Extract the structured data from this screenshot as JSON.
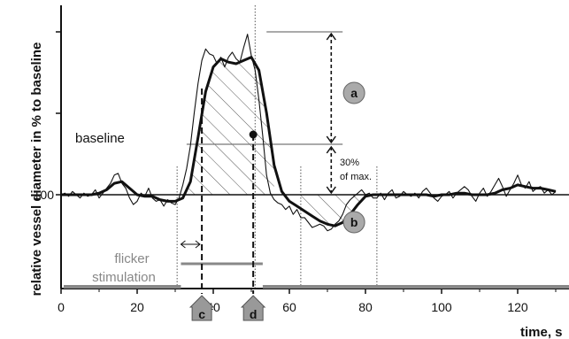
{
  "chart_data": {
    "type": "line",
    "title": "",
    "xlabel": "time, s",
    "ylabel": "relative vessel diameter in % to baseline",
    "xlim": [
      0,
      130
    ],
    "x_ticks": [
      "0",
      "20",
      "40",
      "60",
      "80",
      "100",
      "120"
    ],
    "y_tick_labels": [
      "100"
    ],
    "baseline_value": 100,
    "series": [
      {
        "kind": "raw",
        "x": [
          0,
          1,
          2,
          3,
          4,
          5,
          6,
          7,
          8,
          9,
          10,
          11,
          12,
          13,
          14,
          15,
          16,
          17,
          18,
          19,
          20,
          21,
          22,
          23,
          24,
          25,
          26,
          27,
          28,
          29,
          30,
          31,
          32,
          33,
          34,
          35,
          36,
          37,
          38,
          39,
          40,
          41,
          42,
          43,
          44,
          45,
          46,
          47,
          48,
          49,
          50,
          51,
          52,
          53,
          54,
          55,
          56,
          57,
          58,
          59,
          60,
          61,
          62,
          63,
          64,
          65,
          66,
          67,
          68,
          69,
          70,
          71,
          72,
          73,
          74,
          75,
          76,
          77,
          78,
          79,
          80,
          81,
          82,
          83,
          84,
          85,
          86,
          87,
          88,
          89,
          90,
          91,
          92,
          93,
          94,
          95,
          96,
          97,
          98,
          99,
          100,
          101,
          102,
          103,
          104,
          105,
          106,
          107,
          108,
          109,
          110,
          111,
          112,
          113,
          114,
          115,
          116,
          117,
          118,
          119,
          120,
          121,
          122,
          123,
          124,
          125,
          126,
          127,
          128,
          129,
          130
        ],
        "y": [
          100,
          101,
          99,
          102,
          100,
          98,
          101,
          99,
          100,
          103,
          98,
          101,
          104,
          107,
          112,
          113,
          107,
          104,
          98,
          94,
          96,
          101,
          99,
          104,
          98,
          96,
          97,
          93,
          97,
          95,
          94,
          98,
          106,
          116,
          130,
          150,
          168,
          182,
          189,
          186,
          185,
          180,
          184,
          178,
          184,
          187,
          183,
          181,
          190,
          198,
          185,
          176,
          158,
          136,
          112,
          101,
          97,
          95,
          94,
          91,
          93,
          88,
          91,
          86,
          86,
          83,
          80,
          81,
          82,
          81,
          78,
          79,
          82,
          84,
          88,
          94,
          97,
          99,
          101,
          103,
          100,
          101,
          98,
          98,
          101,
          97,
          101,
          103,
          98,
          99,
          102,
          100,
          99,
          101,
          98,
          102,
          104,
          101,
          98,
          96,
          99,
          100,
          102,
          98,
          101,
          103,
          105,
          103,
          99,
          96,
          101,
          104,
          99,
          102,
          106,
          110,
          105,
          99,
          103,
          107,
          112,
          106,
          104,
          108,
          102,
          104,
          105,
          101,
          103,
          100,
          102
        ]
      },
      {
        "kind": "smoothed",
        "x": [
          0,
          2,
          4,
          6,
          8,
          10,
          12,
          14,
          16,
          18,
          20,
          22,
          24,
          26,
          28,
          30,
          32,
          34,
          36,
          38,
          40,
          42,
          44,
          46,
          48,
          50,
          52,
          54,
          56,
          58,
          60,
          62,
          64,
          66,
          68,
          70,
          72,
          74,
          76,
          78,
          80,
          82,
          84,
          86,
          88,
          90,
          92,
          94,
          96,
          98,
          100,
          102,
          104,
          106,
          108,
          110,
          112,
          114,
          116,
          118,
          120,
          122,
          124,
          126,
          128,
          130
        ],
        "y": [
          100,
          100,
          100,
          100,
          100,
          101,
          103,
          107,
          108,
          104,
          100,
          99,
          99,
          97,
          96,
          96,
          98,
          108,
          135,
          163,
          178,
          183,
          181,
          180,
          182,
          184,
          176,
          150,
          118,
          102,
          96,
          93,
          90,
          87,
          84,
          82,
          81,
          83,
          88,
          94,
          99,
          100,
          100,
          100,
          100,
          100,
          100,
          100,
          100,
          99,
          100,
          100,
          101,
          101,
          100,
          100,
          100,
          101,
          103,
          104,
          106,
          105,
          104,
          104,
          103,
          102
        ]
      }
    ],
    "annotations": {
      "legend_labels": [
        "baseline",
        "flicker",
        "stimulation"
      ],
      "percent_label_line1": "30%",
      "percent_label_line2": "of max.",
      "markers": [
        "a",
        "b",
        "c",
        "d"
      ]
    }
  }
}
